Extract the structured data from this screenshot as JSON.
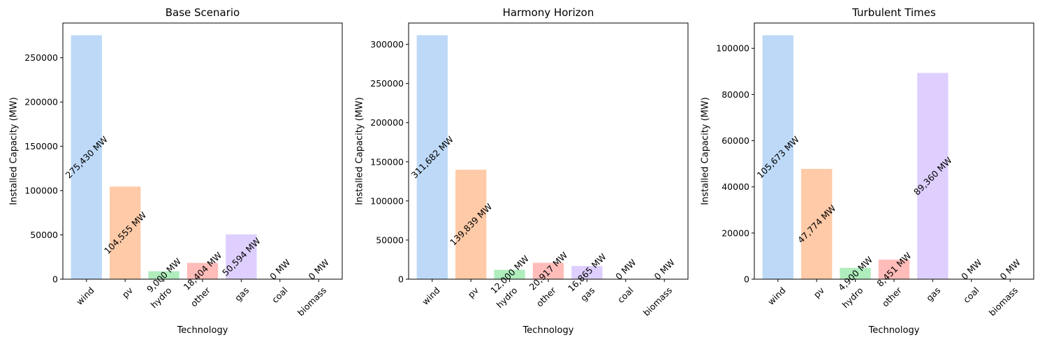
{
  "chart_data": [
    {
      "type": "bar",
      "title": "Base Scenario",
      "xlabel": "Technology",
      "ylabel": "Installed Capacity (MW)",
      "categories": [
        "wind",
        "pv",
        "hydro",
        "other",
        "gas",
        "coal",
        "biomass"
      ],
      "values": [
        275430,
        104555,
        9000,
        18404,
        50594,
        0,
        0
      ],
      "data_labels": [
        "275,430 MW",
        "104,555 MW",
        "9,000 MW",
        "18,404 MW",
        "50,594 MW",
        "0 MW",
        "0 MW"
      ],
      "ylim": [
        0,
        289202
      ],
      "yticks": [
        0,
        50000,
        100000,
        150000,
        200000,
        250000
      ],
      "ytick_labels": [
        "0",
        "50000",
        "100000",
        "150000",
        "200000",
        "250000"
      ]
    },
    {
      "type": "bar",
      "title": "Harmony Horizon",
      "xlabel": "Technology",
      "ylabel": "Installed Capacity (MW)",
      "categories": [
        "wind",
        "pv",
        "hydro",
        "other",
        "gas",
        "coal",
        "biomass"
      ],
      "values": [
        311682,
        139839,
        12000,
        20917,
        16865,
        0,
        0
      ],
      "data_labels": [
        "311,682 MW",
        "139,839 MW",
        "12,000 MW",
        "20,917 MW",
        "16,865 MW",
        "0 MW",
        "0 MW"
      ],
      "ylim": [
        0,
        327266
      ],
      "yticks": [
        0,
        50000,
        100000,
        150000,
        200000,
        250000,
        300000
      ],
      "ytick_labels": [
        "0",
        "50000",
        "100000",
        "150000",
        "200000",
        "250000",
        "300000"
      ]
    },
    {
      "type": "bar",
      "title": "Turbulent Times",
      "xlabel": "Technology",
      "ylabel": "Installed Capacity (MW)",
      "categories": [
        "wind",
        "pv",
        "hydro",
        "other",
        "gas",
        "coal",
        "biomass"
      ],
      "values": [
        105673,
        47774,
        4900,
        8451,
        89360,
        0,
        0
      ],
      "data_labels": [
        "105,673 MW",
        "47,774 MW",
        "4,900 MW",
        "8,451 MW",
        "89,360 MW",
        "0 MW",
        "0 MW"
      ],
      "ylim": [
        0,
        110957
      ],
      "yticks": [
        0,
        20000,
        40000,
        60000,
        80000,
        100000
      ],
      "ytick_labels": [
        "0",
        "20000",
        "40000",
        "60000",
        "80000",
        "100000"
      ]
    }
  ],
  "colors": {
    "bars": [
      "#a1c9f4",
      "#ffb482",
      "#8de5a1",
      "#ff9f9b",
      "#d0bbff",
      "#debb9b",
      "#fab0e4"
    ],
    "bar_opacity": 0.7,
    "axis": "#000000"
  }
}
